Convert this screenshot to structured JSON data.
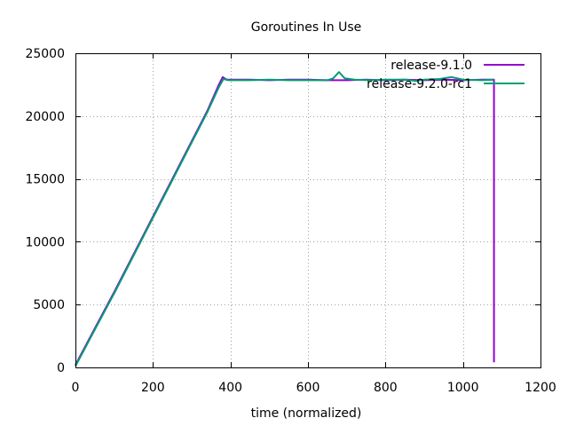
{
  "chart_data": {
    "type": "line",
    "title": "Goroutines In Use",
    "xlabel": "time (normalized)",
    "ylabel": "",
    "xlim": [
      0,
      1200
    ],
    "ylim": [
      0,
      25000
    ],
    "xticks": [
      0,
      200,
      400,
      600,
      800,
      1000,
      1200
    ],
    "yticks": [
      0,
      5000,
      10000,
      15000,
      20000,
      25000
    ],
    "grid": true,
    "legend_position": "top-right",
    "series": [
      {
        "name": "release-9.1.0",
        "color": "#9400d3",
        "points": [
          [
            0,
            200
          ],
          [
            50,
            3100
          ],
          [
            100,
            6000
          ],
          [
            150,
            9000
          ],
          [
            200,
            12000
          ],
          [
            250,
            15000
          ],
          [
            300,
            18000
          ],
          [
            340,
            20400
          ],
          [
            370,
            22500
          ],
          [
            380,
            23100
          ],
          [
            390,
            22900
          ],
          [
            450,
            22900
          ],
          [
            500,
            22850
          ],
          [
            550,
            22900
          ],
          [
            600,
            22900
          ],
          [
            650,
            22850
          ],
          [
            700,
            22850
          ],
          [
            750,
            22900
          ],
          [
            800,
            22850
          ],
          [
            850,
            22900
          ],
          [
            900,
            22850
          ],
          [
            950,
            22900
          ],
          [
            1000,
            22850
          ],
          [
            1050,
            22900
          ],
          [
            1080,
            22900
          ],
          [
            1080,
            400
          ]
        ]
      },
      {
        "name": "release-9.2.0-rc1",
        "color": "#009e73",
        "points": [
          [
            0,
            100
          ],
          [
            50,
            3000
          ],
          [
            100,
            5900
          ],
          [
            150,
            8900
          ],
          [
            200,
            11900
          ],
          [
            250,
            14900
          ],
          [
            300,
            17900
          ],
          [
            340,
            20300
          ],
          [
            370,
            22300
          ],
          [
            382,
            22950
          ],
          [
            395,
            22850
          ],
          [
            450,
            22850
          ],
          [
            500,
            22900
          ],
          [
            550,
            22850
          ],
          [
            600,
            22850
          ],
          [
            650,
            22850
          ],
          [
            665,
            23000
          ],
          [
            680,
            23500
          ],
          [
            695,
            23000
          ],
          [
            720,
            22900
          ],
          [
            760,
            22850
          ],
          [
            800,
            22900
          ],
          [
            850,
            22900
          ],
          [
            880,
            22800
          ],
          [
            900,
            22900
          ],
          [
            940,
            22950
          ],
          [
            970,
            23100
          ],
          [
            1000,
            22900
          ],
          [
            1050,
            22850
          ],
          [
            1080,
            22900
          ]
        ]
      }
    ]
  }
}
